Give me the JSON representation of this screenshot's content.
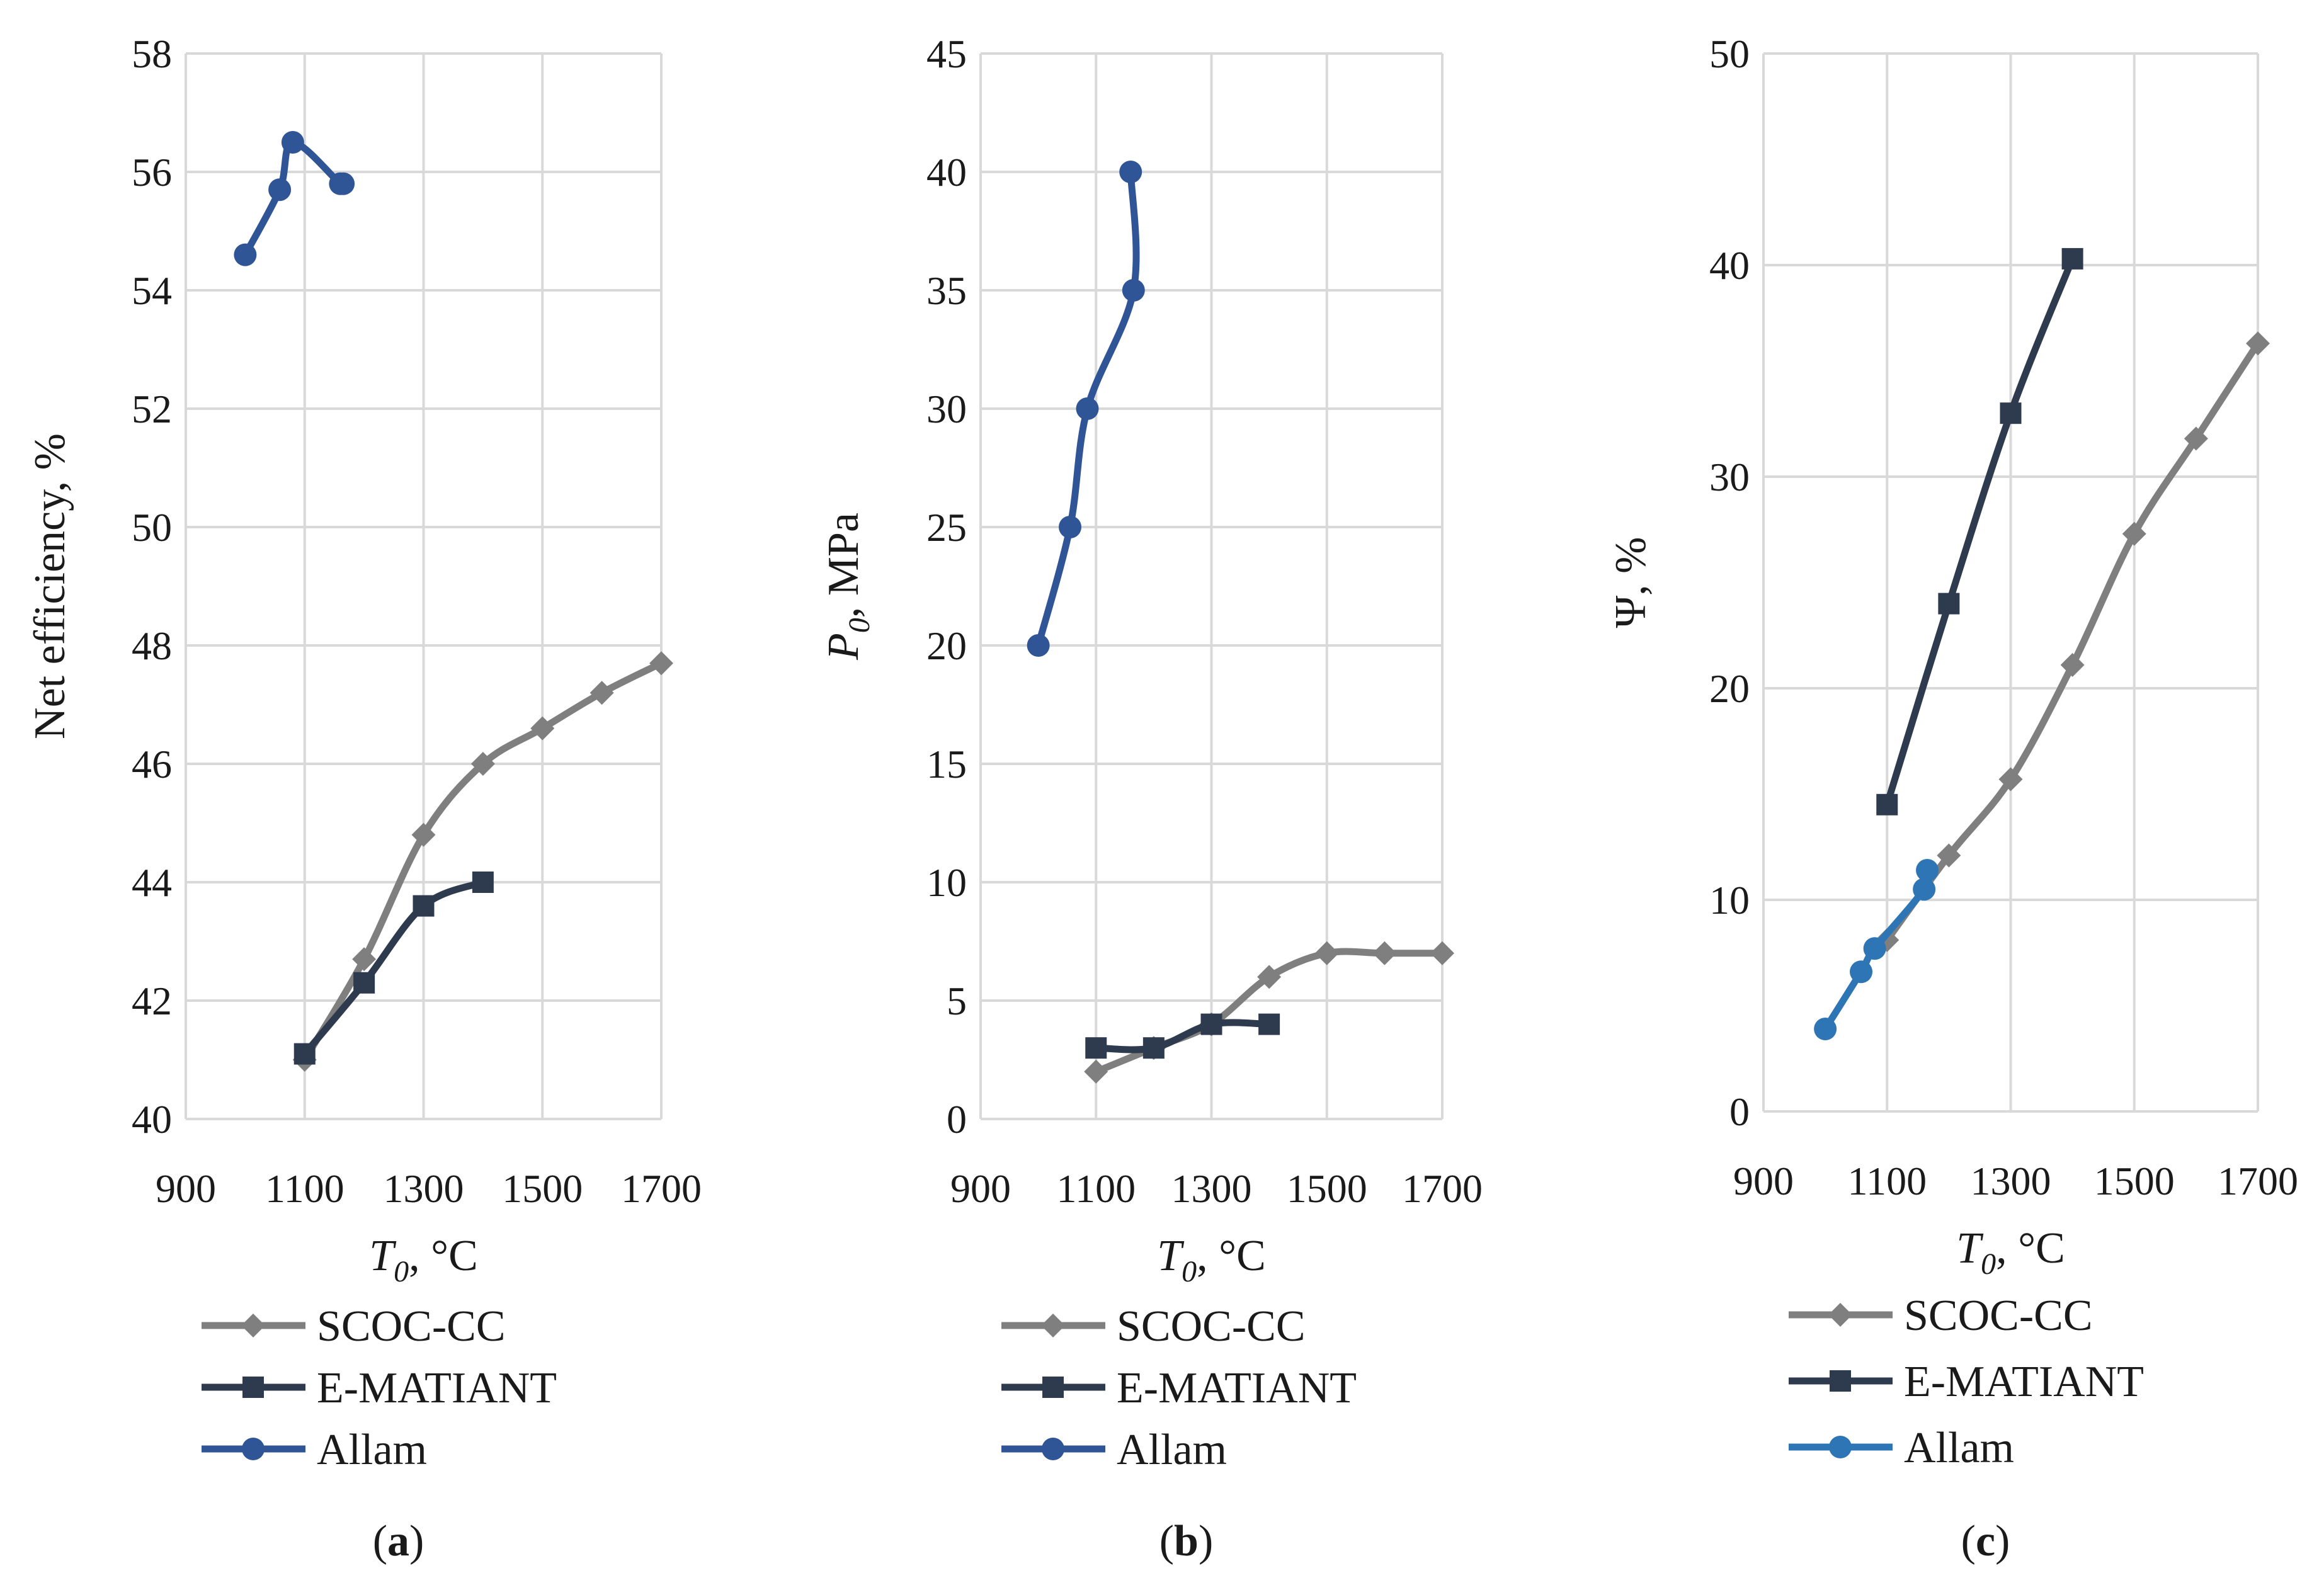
{
  "colors": {
    "scoc": "#7f7f7f",
    "ematiant": "#2e3b4e",
    "allam_a": "#2f5597",
    "allam_b": "#2f5597",
    "allam_c": "#2e75b6",
    "grid": "#d9d9d9"
  },
  "chart_data": [
    {
      "type": "line",
      "panel_label": "a",
      "ylabel": "Net efficiency, %",
      "xlabel_var": "T",
      "xlabel_sub": "0",
      "xlabel_unit": ", °C",
      "xlim": [
        900,
        1700
      ],
      "ylim": [
        40,
        58
      ],
      "xticks": [
        "900",
        "1100",
        "1300",
        "1500",
        "1700"
      ],
      "yticks": [
        "40",
        "42",
        "44",
        "46",
        "48",
        "50",
        "52",
        "54",
        "56",
        "58"
      ],
      "xgrid": [
        900,
        1100,
        1300,
        1500,
        1700
      ],
      "ygrid": [
        40,
        42,
        44,
        46,
        48,
        50,
        52,
        54,
        56,
        58
      ],
      "series": [
        {
          "name": "SCOC-CC",
          "marker": "diamond",
          "color_key": "scoc",
          "x": [
            1100,
            1200,
            1300,
            1400,
            1500,
            1600,
            1700
          ],
          "y": [
            41.0,
            42.7,
            44.8,
            46.0,
            46.6,
            47.2,
            47.7
          ]
        },
        {
          "name": "E-MATIANT",
          "marker": "square",
          "color_key": "ematiant",
          "x": [
            1100,
            1200,
            1300,
            1400
          ],
          "y": [
            41.1,
            42.3,
            43.6,
            44.0
          ]
        },
        {
          "name": "Allam",
          "marker": "circle",
          "color_key": "allam_a",
          "x": [
            1000,
            1058,
            1080,
            1160,
            1165
          ],
          "y": [
            54.6,
            55.7,
            56.5,
            55.8,
            55.8
          ]
        }
      ]
    },
    {
      "type": "line",
      "panel_label": "b",
      "ylabel_var": "P",
      "ylabel_sub": "0",
      "ylabel_unit": ", MPa",
      "xlabel_var": "T",
      "xlabel_sub": "0",
      "xlabel_unit": ", °C",
      "xlim": [
        900,
        1700
      ],
      "ylim": [
        0,
        45
      ],
      "xticks": [
        "900",
        "1100",
        "1300",
        "1500",
        "1700"
      ],
      "yticks": [
        "0",
        "5",
        "10",
        "15",
        "20",
        "25",
        "30",
        "35",
        "40",
        "45"
      ],
      "xgrid": [
        900,
        1100,
        1300,
        1500,
        1700
      ],
      "ygrid": [
        0,
        5,
        10,
        15,
        20,
        25,
        30,
        35,
        40,
        45
      ],
      "series": [
        {
          "name": "SCOC-CC",
          "marker": "diamond",
          "color_key": "scoc",
          "x": [
            1100,
            1200,
            1300,
            1400,
            1500,
            1600,
            1700
          ],
          "y": [
            2,
            3,
            4,
            6,
            7,
            7,
            7
          ]
        },
        {
          "name": "E-MATIANT",
          "marker": "square",
          "color_key": "ematiant",
          "x": [
            1100,
            1200,
            1300,
            1400
          ],
          "y": [
            3,
            3,
            4,
            4
          ]
        },
        {
          "name": "Allam",
          "marker": "circle",
          "color_key": "allam_b",
          "x": [
            1000,
            1055,
            1085,
            1165,
            1160
          ],
          "y": [
            20,
            25,
            30,
            35,
            40
          ]
        }
      ]
    },
    {
      "type": "line",
      "panel_label": "c",
      "ylabel": "Ψ, %",
      "xlabel_var": "T",
      "xlabel_sub": "0",
      "xlabel_unit": ", °C",
      "xlim": [
        900,
        1700
      ],
      "ylim": [
        0,
        50
      ],
      "xticks": [
        "900",
        "1100",
        "1300",
        "1500",
        "1700"
      ],
      "yticks": [
        "0",
        "10",
        "20",
        "30",
        "40",
        "50"
      ],
      "xgrid": [
        900,
        1100,
        1300,
        1500,
        1700
      ],
      "ygrid": [
        0,
        10,
        20,
        30,
        40,
        50
      ],
      "series": [
        {
          "name": "SCOC-CC",
          "marker": "diamond",
          "color_key": "scoc",
          "x": [
            1100,
            1200,
            1300,
            1400,
            1500,
            1600,
            1700
          ],
          "y": [
            8.1,
            12.1,
            15.7,
            21.1,
            27.3,
            31.8,
            36.3
          ]
        },
        {
          "name": "E-MATIANT",
          "marker": "square",
          "color_key": "ematiant",
          "x": [
            1100,
            1200,
            1300,
            1400
          ],
          "y": [
            14.5,
            24.0,
            33.0,
            40.3
          ]
        },
        {
          "name": "Allam",
          "marker": "circle",
          "color_key": "allam_c",
          "x": [
            1000,
            1058,
            1080,
            1160,
            1165
          ],
          "y": [
            3.9,
            6.6,
            7.7,
            10.5,
            11.4
          ]
        }
      ]
    }
  ]
}
